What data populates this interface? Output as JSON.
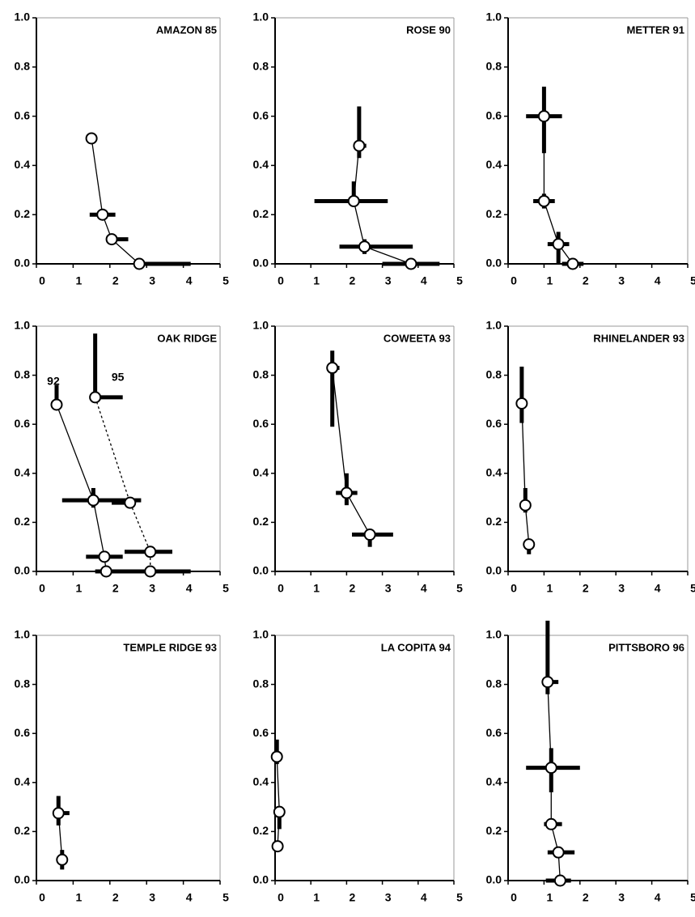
{
  "chart_data": [
    {
      "type": "scatter",
      "title": "AMAZON 85",
      "xlim": [
        0,
        5
      ],
      "ylim": [
        0,
        1
      ],
      "xticks": [
        0,
        1,
        2,
        3,
        4,
        5
      ],
      "yticks": [
        {
          "value": 0,
          "label": "0.0"
        },
        0.2,
        0.4,
        0.6,
        0.8,
        {
          "value": 1,
          "label": "1.0"
        }
      ],
      "series": [
        {
          "color": "#000000",
          "line_style": "solid",
          "x": [
            1.5,
            1.8,
            2.05,
            2.8
          ],
          "y": [
            0.51,
            0.2,
            0.1,
            0
          ],
          "xerr": [
            [
              0,
              0
            ],
            [
              0.35,
              0.35
            ],
            [
              0.15,
              0.45
            ],
            [
              0,
              1.4
            ]
          ],
          "yerr": [
            [
              0,
              0
            ],
            [
              0.02,
              0.02
            ],
            [
              0.02,
              0.02
            ],
            [
              0,
              0
            ]
          ]
        }
      ]
    },
    {
      "type": "scatter",
      "title": "ROSE 90",
      "xlim": [
        0,
        5
      ],
      "ylim": [
        0,
        1
      ],
      "xticks": [
        0,
        1,
        2,
        3,
        4,
        5
      ],
      "yticks": [
        {
          "value": 0,
          "label": "0.0"
        },
        0.2,
        0.4,
        0.6,
        0.8,
        {
          "value": 1,
          "label": "1.0"
        }
      ],
      "series": [
        {
          "color": "#000000",
          "line_style": "solid",
          "x": [
            2.35,
            2.2,
            2.5,
            3.8
          ],
          "y": [
            0.48,
            0.255,
            0.07,
            0
          ],
          "xerr": [
            [
              0.05,
              0.2
            ],
            [
              1.1,
              0.95
            ],
            [
              0.7,
              1.35
            ],
            [
              0.8,
              0.8
            ]
          ],
          "yerr": [
            [
              0.05,
              0.16
            ],
            [
              0.02,
              0.08
            ],
            [
              0.03,
              0.03
            ],
            [
              0,
              0
            ]
          ]
        }
      ]
    },
    {
      "type": "scatter",
      "title": "METTER 91",
      "xlim": [
        0,
        5
      ],
      "ylim": [
        0,
        1
      ],
      "xticks": [
        0,
        1,
        2,
        3,
        4,
        5
      ],
      "yticks": [
        {
          "value": 0,
          "label": "0.0"
        },
        0.2,
        0.4,
        0.6,
        0.8,
        {
          "value": 1,
          "label": "1.0"
        }
      ],
      "series": [
        {
          "color": "#000000",
          "line_style": "solid",
          "x": [
            1.0,
            1.0,
            1.4,
            1.8
          ],
          "y": [
            0.6,
            0.255,
            0.08,
            0
          ],
          "xerr": [
            [
              0.5,
              0.5
            ],
            [
              0.3,
              0.3
            ],
            [
              0.3,
              0.3
            ],
            [
              0.3,
              0.3
            ]
          ],
          "yerr": [
            [
              0.15,
              0.12
            ],
            [
              0.03,
              0.03
            ],
            [
              0.08,
              0.05
            ],
            [
              0,
              0
            ]
          ]
        }
      ]
    },
    {
      "type": "scatter",
      "title": "OAK RIDGE",
      "xlim": [
        0,
        5
      ],
      "ylim": [
        0,
        1
      ],
      "xticks": [
        0,
        1,
        2,
        3,
        4,
        5
      ],
      "yticks": [
        {
          "value": 0,
          "label": "0.0"
        },
        0.2,
        0.4,
        0.6,
        0.8,
        {
          "value": 1,
          "label": "1.0"
        }
      ],
      "series": [
        {
          "name": "92",
          "color": "#000000",
          "line_style": "solid",
          "x": [
            0.55,
            1.55,
            1.85,
            1.9
          ],
          "y": [
            0.68,
            0.29,
            0.06,
            0
          ],
          "xerr": [
            [
              0.05,
              0.1
            ],
            [
              0.85,
              1.3
            ],
            [
              0.5,
              0.5
            ],
            [
              0.3,
              2.3
            ]
          ],
          "yerr": [
            [
              0.02,
              0.08
            ],
            [
              0.03,
              0.05
            ],
            [
              0.02,
              0.02
            ],
            [
              0,
              0
            ]
          ]
        },
        {
          "name": "95",
          "color": "#000000",
          "line_style": "dashed",
          "x": [
            1.6,
            2.55,
            3.1,
            3.1
          ],
          "y": [
            0.71,
            0.28,
            0.08,
            0
          ],
          "xerr": [
            [
              0,
              0.75
            ],
            [
              0.5,
              0
            ],
            [
              0.7,
              0.6
            ],
            [
              1.0,
              0.7
            ]
          ],
          "yerr": [
            [
              0.02,
              0.26
            ],
            [
              0,
              0
            ],
            [
              0,
              0
            ],
            [
              0,
              0
            ]
          ]
        }
      ]
    },
    {
      "type": "scatter",
      "title": "COWEETA 93",
      "xlim": [
        0,
        5
      ],
      "ylim": [
        0,
        1
      ],
      "xticks": [
        0,
        1,
        2,
        3,
        4,
        5
      ],
      "yticks": [
        {
          "value": 0,
          "label": "0.0"
        },
        0.2,
        0.4,
        0.6,
        0.8,
        {
          "value": 1,
          "label": "1.0"
        }
      ],
      "series": [
        {
          "color": "#000000",
          "line_style": "solid",
          "x": [
            1.6,
            2.0,
            2.65
          ],
          "y": [
            0.83,
            0.32,
            0.15
          ],
          "xerr": [
            [
              0.1,
              0.2
            ],
            [
              0.3,
              0.3
            ],
            [
              0.5,
              0.65
            ]
          ],
          "yerr": [
            [
              0.24,
              0.07
            ],
            [
              0.05,
              0.08
            ],
            [
              0.05,
              0.01
            ]
          ]
        }
      ]
    },
    {
      "type": "scatter",
      "title": "RHINELANDER 93",
      "xlim": [
        0,
        5
      ],
      "ylim": [
        0,
        1
      ],
      "xticks": [
        0,
        1,
        2,
        3,
        4,
        5
      ],
      "yticks": [
        {
          "value": 0,
          "label": "0.0"
        },
        0.2,
        0.4,
        0.6,
        0.8,
        {
          "value": 1,
          "label": "1.0"
        }
      ],
      "series": [
        {
          "color": "#000000",
          "line_style": "solid",
          "x": [
            0.38,
            0.48,
            0.58
          ],
          "y": [
            0.685,
            0.27,
            0.11
          ],
          "xerr": [
            [
              0.1,
              0.1
            ],
            [
              0.05,
              0.1
            ],
            [
              0.08,
              0.08
            ]
          ],
          "yerr": [
            [
              0.08,
              0.15
            ],
            [
              0.03,
              0.07
            ],
            [
              0.04,
              0.01
            ]
          ]
        }
      ]
    },
    {
      "type": "scatter",
      "title": "TEMPLE RIDGE 93",
      "xlim": [
        0,
        5
      ],
      "ylim": [
        0,
        1
      ],
      "xticks": [
        0,
        1,
        2,
        3,
        4,
        5
      ],
      "yticks": [
        {
          "value": 0,
          "label": "0.0"
        },
        0.2,
        0.4,
        0.6,
        0.8,
        {
          "value": 1,
          "label": "1.0"
        }
      ],
      "series": [
        {
          "color": "#000000",
          "line_style": "solid",
          "x": [
            0.6,
            0.7
          ],
          "y": [
            0.275,
            0.085
          ],
          "xerr": [
            [
              0.1,
              0.3
            ],
            [
              0.05,
              0.05
            ]
          ],
          "yerr": [
            [
              0.05,
              0.07
            ],
            [
              0.04,
              0.04
            ]
          ]
        }
      ]
    },
    {
      "type": "scatter",
      "title": "LA COPITA 94",
      "xlim": [
        0,
        5
      ],
      "ylim": [
        0,
        1
      ],
      "xticks": [
        0,
        1,
        2,
        3,
        4,
        5
      ],
      "yticks": [
        {
          "value": 0,
          "label": "0.0"
        },
        0.2,
        0.4,
        0.6,
        0.8,
        {
          "value": 1,
          "label": "1.0"
        }
      ],
      "series": [
        {
          "color": "#000000",
          "line_style": "solid",
          "x": [
            0.05,
            0.12,
            0.07
          ],
          "y": [
            0.505,
            0.28,
            0.14
          ],
          "xerr": [
            [
              0.05,
              0.05
            ],
            [
              0.05,
              0.05
            ],
            [
              0,
              0
            ]
          ],
          "yerr": [
            [
              0.03,
              0.07
            ],
            [
              0.07,
              0.02
            ],
            [
              0,
              0
            ]
          ]
        }
      ]
    },
    {
      "type": "scatter",
      "title": "PITTSBORO 96",
      "xlim": [
        0,
        5
      ],
      "ylim": [
        0,
        1
      ],
      "xticks": [
        0,
        1,
        2,
        3,
        4,
        5
      ],
      "yticks": [
        {
          "value": 0,
          "label": "0.0"
        },
        0.2,
        0.4,
        0.6,
        0.8,
        {
          "value": 1,
          "label": "1.0"
        }
      ],
      "series": [
        {
          "color": "#000000",
          "line_style": "solid",
          "x": [
            1.1,
            1.2,
            1.2,
            1.4,
            1.45
          ],
          "y": [
            0.81,
            0.46,
            0.23,
            0.115,
            0
          ],
          "xerr": [
            [
              0.15,
              0.3
            ],
            [
              0.7,
              0.8
            ],
            [
              0.2,
              0.3
            ],
            [
              0.3,
              0.45
            ],
            [
              0.4,
              0.3
            ]
          ],
          "yerr": [
            [
              0.05,
              0.25
            ],
            [
              0.1,
              0.08
            ],
            [
              0.02,
              0.02
            ],
            [
              0,
              0
            ],
            [
              0,
              0
            ]
          ]
        }
      ]
    }
  ]
}
